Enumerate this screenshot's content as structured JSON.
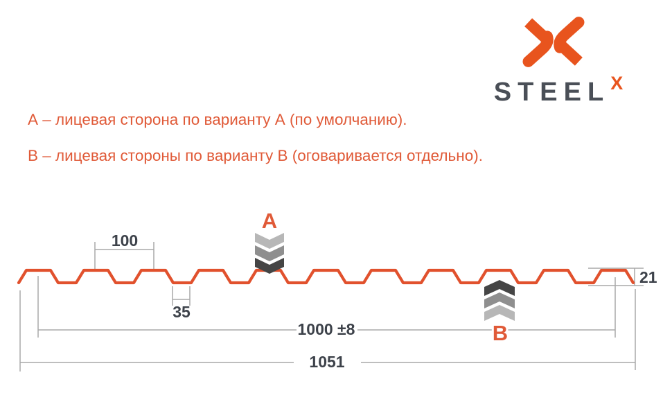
{
  "logo": {
    "wordmark": "STEEL",
    "wordmark_sup": "X"
  },
  "notes": {
    "line_a": "А – лицевая сторона по варианту А (по умолчанию).",
    "line_b": "В – лицевая стороны по варианту В (оговаривается отдельно)."
  },
  "diagram": {
    "type": "corrugated-sheet-profile-cross-section",
    "labels": {
      "side_a": "А",
      "side_b": "В"
    },
    "dimensions": {
      "wave_pitch": "100",
      "valley_width": "35",
      "working_width": "1000 ±8",
      "overall_width": "1051",
      "height": "21"
    }
  },
  "colors": {
    "profile_orange": "#e1512d",
    "logo_orange": "#e8541e",
    "note_orange": "#e05a38",
    "dim_text_dark": "#3d424a",
    "wordmark_gray": "#4a4f57",
    "dim_line_gray": "#a8a8a8",
    "chevron_light": "#b7b7b7",
    "chevron_mid": "#8f8f8f",
    "chevron_dark": "#454545"
  }
}
